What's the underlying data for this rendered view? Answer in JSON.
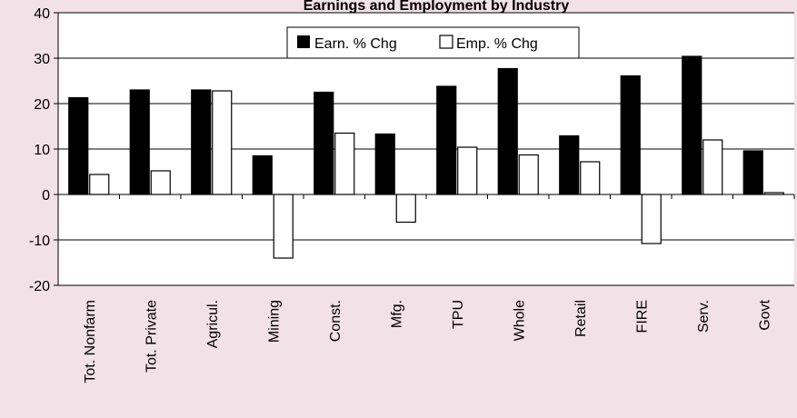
{
  "chart_data": {
    "type": "bar",
    "title": "Earnings and Employment by Industry",
    "categories": [
      "Tot. Nonfarm",
      "Tot. Private",
      "Agricul.",
      "Mining",
      "Const.",
      "Mfg.",
      "TPU",
      "Whole",
      "Retail",
      "FIRE",
      "Serv.",
      "Govt"
    ],
    "series": [
      {
        "name": "Earn. % Chg",
        "values": [
          21.3,
          23.0,
          23.0,
          8.5,
          22.5,
          13.3,
          23.8,
          27.7,
          12.9,
          26.1,
          30.4,
          9.6
        ]
      },
      {
        "name": "Emp. % Chg",
        "values": [
          4.4,
          5.2,
          22.8,
          -14.0,
          13.5,
          -6.1,
          10.4,
          8.7,
          7.2,
          -10.8,
          12.0,
          0.4
        ]
      }
    ],
    "ylim": [
      -20,
      40
    ],
    "yticks": [
      "-20",
      "-10",
      "0",
      "10",
      "20",
      "30",
      "40"
    ],
    "grid": true,
    "legend_position": "top-center",
    "colors": {
      "background": "#f2e1e6",
      "plot": "#ffffff",
      "earn": "#000000",
      "emp": "#ffffff"
    }
  }
}
